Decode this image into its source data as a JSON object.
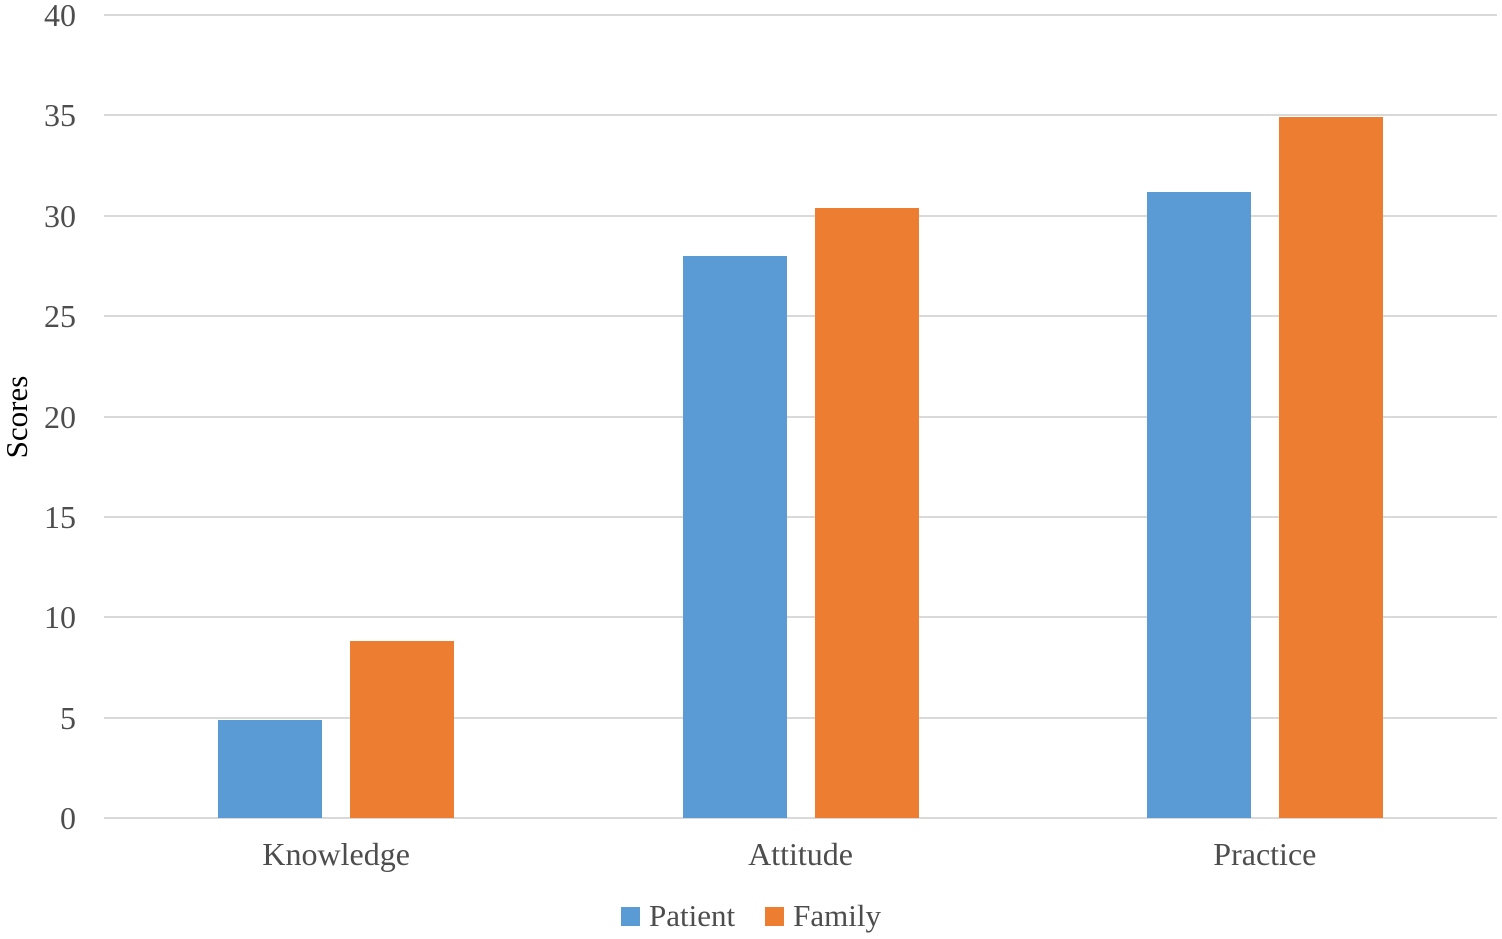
{
  "chart_data": {
    "type": "bar",
    "title": "",
    "xlabel": "",
    "ylabel": "Scores",
    "categories": [
      "Knowledge",
      "Attitude",
      "Practice"
    ],
    "series": [
      {
        "name": "Patient",
        "color": "#5B9BD5",
        "values": [
          4.9,
          28.0,
          31.2
        ]
      },
      {
        "name": "Family",
        "color": "#ED7D31",
        "values": [
          8.8,
          30.4,
          34.9
        ]
      }
    ],
    "ylim": [
      0,
      40
    ],
    "yticks": [
      0,
      5,
      10,
      15,
      20,
      25,
      30,
      35,
      40
    ],
    "grid": true,
    "gridline_color": "#D9D9D9",
    "axis_line_color": "#D9D9D9",
    "text_color": "#4d4d4d",
    "legend_position": "bottom"
  }
}
